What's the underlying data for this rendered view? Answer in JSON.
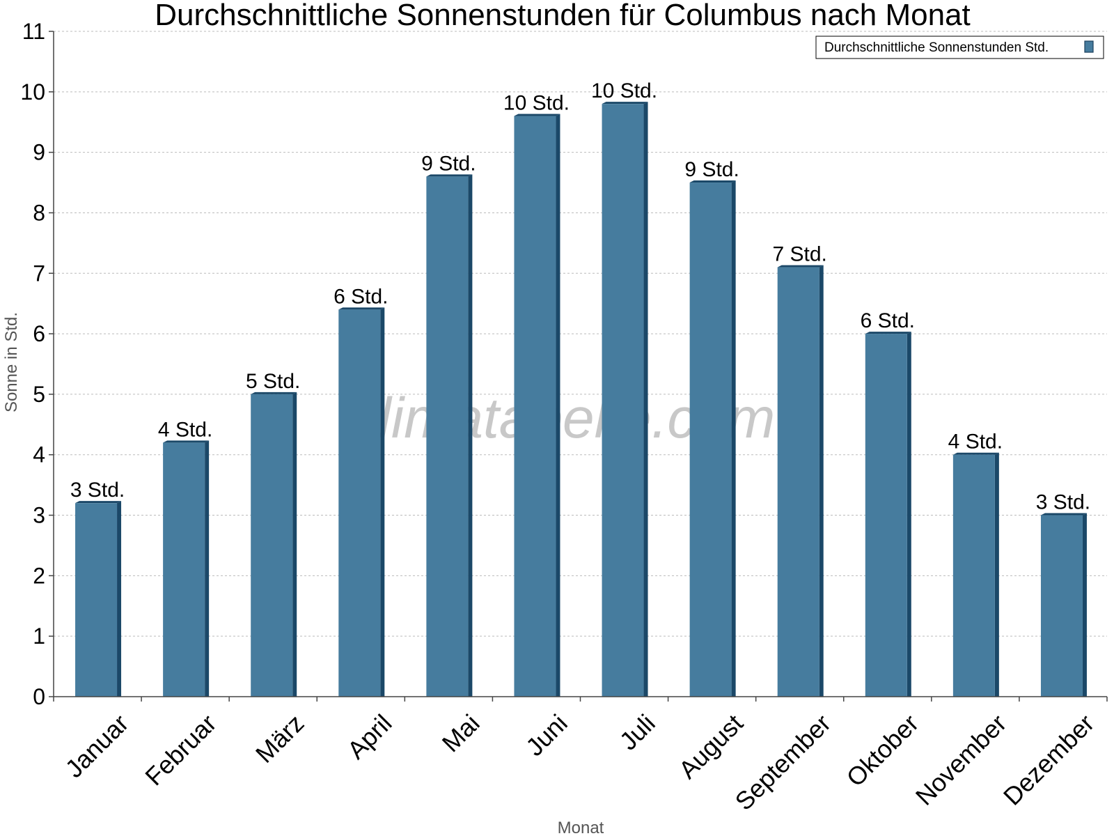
{
  "chart_data": {
    "type": "bar",
    "title": "Durchschnittliche Sonnenstunden für Columbus nach Monat",
    "xlabel": "Monat",
    "ylabel": "Sonne in Std.",
    "ylim": [
      0,
      11
    ],
    "yticks": [
      "0",
      "1",
      "2",
      "3",
      "4",
      "5",
      "6",
      "7",
      "8",
      "9",
      "10",
      "11"
    ],
    "grid": true,
    "legend_position": "top-right",
    "categories": [
      "Januar",
      "Februar",
      "März",
      "April",
      "Mai",
      "Juni",
      "Juli",
      "August",
      "September",
      "Oktober",
      "November",
      "Dezember"
    ],
    "series": [
      {
        "name": "Durchschnittliche Sonnenstunden Std.",
        "color": "#467c9e",
        "values": [
          3.2,
          4.2,
          5.0,
          6.4,
          8.6,
          9.6,
          9.8,
          8.5,
          7.1,
          6.0,
          4.0,
          3.0
        ],
        "labels": [
          "3 Std.",
          "4 Std.",
          "5 Std.",
          "6 Std.",
          "9 Std.",
          "10 Std.",
          "10 Std.",
          "9 Std.",
          "7 Std.",
          "6 Std.",
          "4 Std.",
          "3 Std."
        ]
      }
    ]
  },
  "watermark": "klimatabelle.com"
}
